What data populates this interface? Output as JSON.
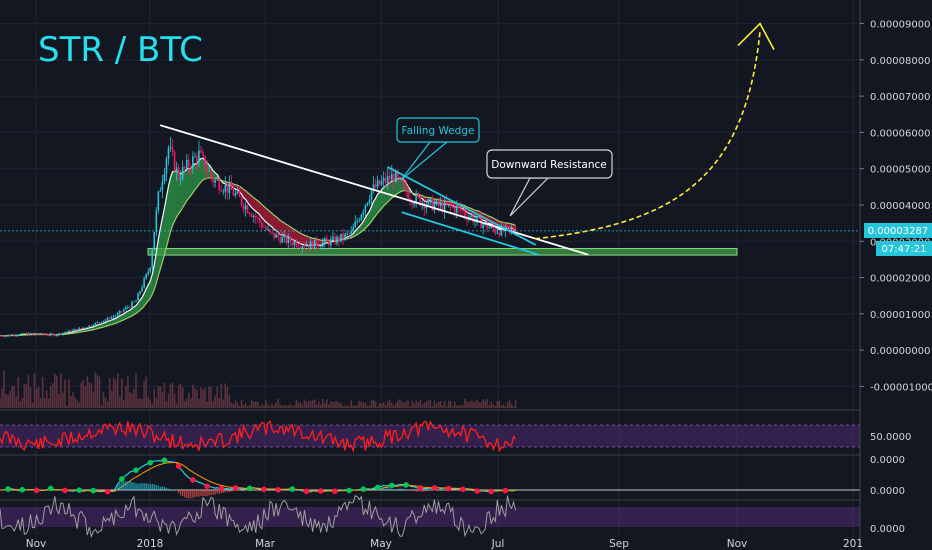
{
  "chart_data": [
    {
      "type": "candlestick",
      "title": "STR / BTC",
      "x_axis": {
        "ticks": [
          "Nov",
          "2018",
          "Mar",
          "May",
          "Jul",
          "Sep",
          "Nov",
          "201"
        ]
      },
      "y_axis": {
        "ticks": [
          "0.00009000",
          "0.00008000",
          "0.00007000",
          "0.00006000",
          "0.00005000",
          "0.00004000",
          "0.00003000",
          "0.00002000",
          "0.00001000",
          "0.00000000",
          "-0.00001000"
        ],
        "ylim": [
          -1.65e-05,
          9.65e-05
        ]
      },
      "last_price": {
        "value": "0.00003287",
        "countdown": "07:47:21"
      },
      "price_series": {
        "x": [
          "Oct 20",
          "Nov 1",
          "Nov 15",
          "Dec 1",
          "Dec 15",
          "Dec 25",
          "Jan 1",
          "Jan 5",
          "Jan 10",
          "Jan 15",
          "Jan 25",
          "Feb 1",
          "Feb 10",
          "Feb 20",
          "Mar 1",
          "Mar 10",
          "Mar 20",
          "Apr 1",
          "Apr 10",
          "Apr 20",
          "Apr 25",
          "May 1",
          "May 10",
          "May 20",
          "Jun 1",
          "Jun 10",
          "Jun 20",
          "Jul 1"
        ],
        "close": [
          4e-06,
          4.5e-06,
          4.2e-06,
          6.5e-06,
          9.5e-06,
          1.35e-05,
          2.3e-05,
          4.2e-05,
          5.6e-05,
          4.8e-05,
          5.4e-05,
          4.7e-05,
          4.4e-05,
          3.8e-05,
          3.2e-05,
          3e-05,
          2.9e-05,
          3e-05,
          3.2e-05,
          4.4e-05,
          4.6e-05,
          4.8e-05,
          4.2e-05,
          4e-05,
          3.9e-05,
          3.6e-05,
          3.3e-05,
          3.29e-05
        ]
      },
      "annotations": [
        {
          "type": "label",
          "text": "Falling Wedge",
          "color": "#26c6da"
        },
        {
          "type": "label",
          "text": "Downward Resistance",
          "color": "#ffffff"
        },
        {
          "type": "trendline",
          "name": "downward-resistance",
          "from": [
            "Jan 6",
            6.2e-05
          ],
          "to": [
            "Aug 5",
            2.63e-05
          ],
          "color": "#ffffff"
        },
        {
          "type": "wedge-upper",
          "from": [
            "Apr 28",
            5.05e-05
          ],
          "to": [
            "Jul 10",
            2.9e-05
          ],
          "color": "#26c6da"
        },
        {
          "type": "wedge-lower",
          "from": [
            "May 5",
            3.8e-05
          ],
          "to": [
            "Jul 12",
            2.62e-05
          ],
          "color": "#26c6da"
        },
        {
          "type": "support-zone",
          "from": 2.62e-05,
          "to": 2.8e-05,
          "color": "#4caf50"
        },
        {
          "type": "projection-arrow",
          "color": "#ffeb3b",
          "target": 9e-05
        }
      ]
    },
    {
      "type": "line",
      "name": "RSI",
      "y_axis": {
        "ticks": [
          "50.0000"
        ]
      },
      "color": "#ff1f1f"
    },
    {
      "type": "line",
      "name": "MACD",
      "y_axis": {
        "ticks": [
          "0.0000",
          "0.0000"
        ]
      }
    },
    {
      "type": "line",
      "name": "Stochastic RSI",
      "y_axis": {
        "ticks": [
          "0.0000"
        ]
      }
    }
  ]
}
